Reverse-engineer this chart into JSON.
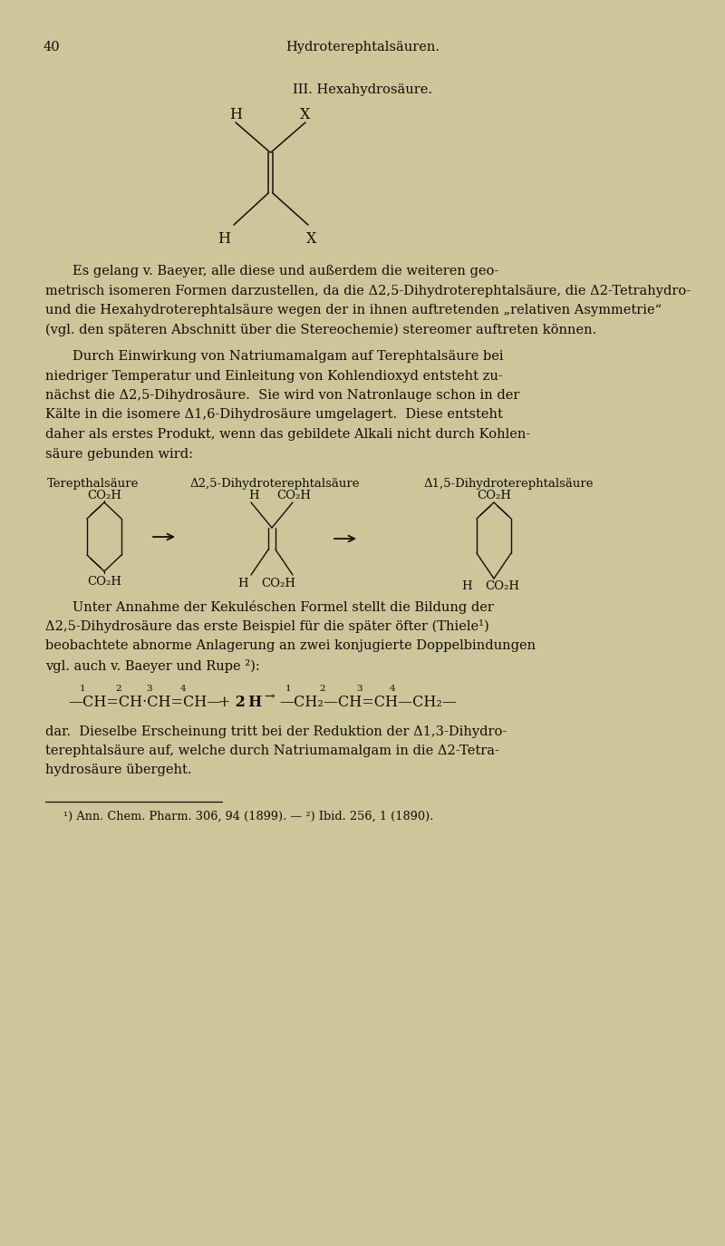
{
  "bg_color": "#cec59a",
  "text_color": "#111008",
  "page_num": "40",
  "header": "Hydroterephtalsäuren.",
  "section": "III. Hexahydrosäure.",
  "p1_lines": [
    "Es gelang v. Baeyer, alle diese und außerdem die weiteren geo-",
    "metrisch isomeren Formen darzustellen, da die Δ2,5-Dihydroterephtalsäure, die Δ2-Tetrahydro-",
    "und die Hexahydroterephtalsäure wegen der in ihnen auftretenden „relativen Asymmetrie“",
    "(vgl. den späteren Abschnitt über die Stereochemie) stereomer auftreten können."
  ],
  "p2_lines": [
    "Durch Einwirkung von Natriumamalgam auf Terephtalsäure bei",
    "niedriger Temperatur und Einleitung von Kohlendioxyd entsteht zu-",
    "nächst die Δ2,5-Dihydrosäure.  Sie wird von Natronlauge schon in der",
    "Kälte in die isomere Δ1,6-Dihydrosäure umgelagert.  Diese entsteht",
    "daher als erstes Produkt, wenn das gebildete Alkali nicht durch Kohlen-",
    "säure gebunden wird:"
  ],
  "struct_label1": "Terepthalsäure",
  "struct_label2": "Δ2,5-Dihydroterephtalsäure",
  "struct_label3": "Δ1,5-Dihydroterephtalsäure",
  "p3_lines": [
    "Unter Annahme der Kekuléschen Formel stellt die Bildung der",
    "Δ2,5-Dihydrosäure das erste Beispiel für die später öfter (Thiele¹)",
    "beobachtete abnorme Anlagerung an zwei konjugierte Doppelbindungen",
    "vgl. auch v. Baeyer und Rupe ²):"
  ],
  "p4_lines": [
    "dar.  Dieselbe Erscheinung tritt bei der Reduktion der Δ1,3-Dihydro-",
    "terephtalsäure auf, welche durch Natriumamalgam in die Δ2-Tetra-",
    "hydrosäure übergeht."
  ],
  "footnote": "¹) Ann. Chem. Pharm. 306, 94 (1899). — ²) Ibid. 256, 1 (1890)."
}
